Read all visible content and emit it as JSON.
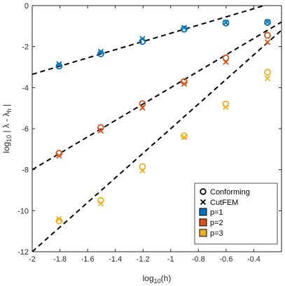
{
  "chart_data": {
    "type": "scatter",
    "xlabel": {
      "base": "log",
      "sub": "10",
      "rest": "(h)"
    },
    "ylabel": {
      "base": "log",
      "sub": "10",
      "rest": " | λ - λ",
      "sub2": "h",
      "end": " |"
    },
    "xlim": [
      -2,
      -0.2
    ],
    "ylim": [
      -12,
      0
    ],
    "x_ticks": [
      -2,
      -1.8,
      -1.6,
      -1.4,
      -1.2,
      -1,
      -0.8,
      -0.6,
      -0.4
    ],
    "x_tick_labels": [
      "-2",
      "-1.8",
      "-1.6",
      "-1.4",
      "-1.2",
      "-1",
      "-0.8",
      "-0.6",
      "-0.4"
    ],
    "y_ticks": [
      -12,
      -10,
      -8,
      -6,
      -4,
      -2,
      0
    ],
    "y_tick_labels": [
      "-12",
      "-10",
      "-8",
      "-6",
      "-4",
      "-2",
      "0"
    ],
    "grid": false,
    "legend_position": "bottom-right",
    "legend": {
      "markers": [
        {
          "label": "Conforming",
          "symbol": "circle"
        },
        {
          "label": "CutFEM",
          "symbol": "cross"
        }
      ],
      "colors": [
        {
          "label": "p=1",
          "color": "#0072BD"
        },
        {
          "label": "p=2",
          "color": "#D95319"
        },
        {
          "label": "p=3",
          "color": "#EDB120"
        }
      ]
    },
    "series": [
      {
        "name": "p=1",
        "color": "#0072BD",
        "conforming": [
          [
            -1.806,
            -2.95
          ],
          [
            -1.505,
            -2.35
          ],
          [
            -1.204,
            -1.75
          ],
          [
            -0.903,
            -1.15
          ],
          [
            -0.602,
            -0.85
          ],
          [
            -0.301,
            -0.82
          ]
        ],
        "cutfem": [
          [
            -1.806,
            -2.85
          ],
          [
            -1.505,
            -2.25
          ],
          [
            -1.204,
            -1.62
          ],
          [
            -0.903,
            -1.08
          ],
          [
            -0.602,
            -0.83
          ],
          [
            -0.301,
            -0.8
          ]
        ]
      },
      {
        "name": "p=2",
        "color": "#D95319",
        "conforming": [
          [
            -1.806,
            -7.2
          ],
          [
            -1.505,
            -5.95
          ],
          [
            -1.204,
            -4.78
          ],
          [
            -0.903,
            -3.7
          ],
          [
            -0.602,
            -2.55
          ],
          [
            -0.301,
            -1.45
          ]
        ],
        "cutfem": [
          [
            -1.806,
            -7.32
          ],
          [
            -1.505,
            -6.1
          ],
          [
            -1.204,
            -4.98
          ],
          [
            -0.903,
            -3.82
          ],
          [
            -0.602,
            -2.75
          ],
          [
            -0.301,
            -1.78
          ]
        ]
      },
      {
        "name": "p=3",
        "color": "#EDB120",
        "conforming": [
          [
            -1.806,
            -10.5
          ],
          [
            -1.505,
            -9.5
          ],
          [
            -1.204,
            -7.85
          ],
          [
            -0.903,
            -6.35
          ],
          [
            -0.602,
            -4.8
          ],
          [
            -0.301,
            -3.25
          ]
        ],
        "cutfem": [
          [
            -1.806,
            -10.4
          ],
          [
            -1.505,
            -9.65
          ],
          [
            -1.204,
            -8.05
          ],
          [
            -0.903,
            -6.42
          ],
          [
            -0.602,
            -4.95
          ],
          [
            -0.301,
            -3.55
          ]
        ]
      }
    ],
    "reference_lines": [
      {
        "slope": 2,
        "intercept": 0.65,
        "style": "dashed"
      },
      {
        "slope": 4,
        "intercept": 0.0,
        "style": "dashed"
      },
      {
        "slope": 6,
        "intercept": 0.0,
        "style": "dashed"
      }
    ]
  }
}
